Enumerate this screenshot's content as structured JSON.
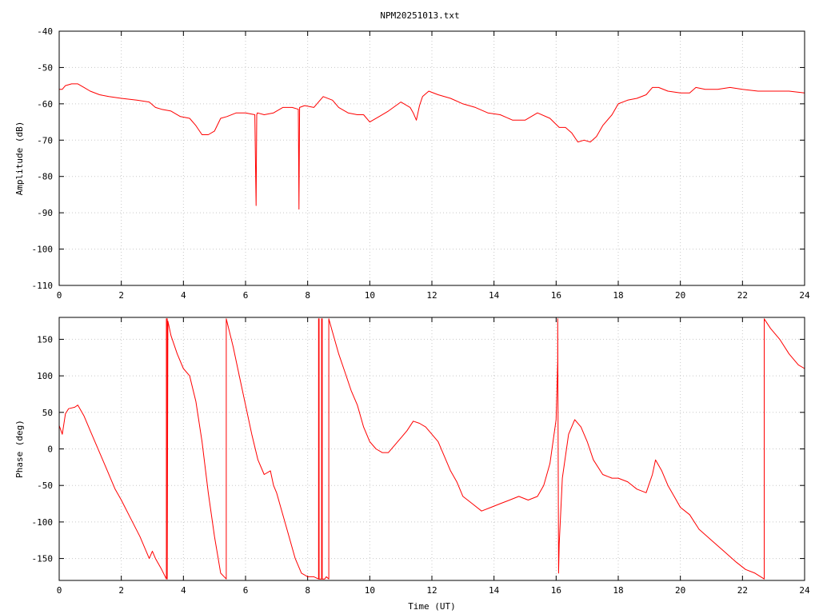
{
  "title": "NPM20251013.txt",
  "colors": {
    "series": "#ff0000",
    "frame": "#000000",
    "grid": "#c8c8c8"
  },
  "chart_data": [
    {
      "type": "line",
      "ylabel": "Amplitude (dB)",
      "xlabel": "",
      "xlim": [
        0,
        24
      ],
      "ylim": [
        -110,
        -40
      ],
      "xticks": [
        0,
        2,
        4,
        6,
        8,
        10,
        12,
        14,
        16,
        18,
        20,
        22,
        24
      ],
      "yticks": [
        -110,
        -100,
        -90,
        -80,
        -70,
        -60,
        -50,
        -40
      ],
      "grid": true,
      "series": [
        {
          "x": [
            0,
            0.1,
            0.2,
            0.4,
            0.6,
            0.8,
            1.0,
            1.3,
            1.6,
            2.0,
            2.5,
            2.9,
            3.1,
            3.3,
            3.6,
            3.9,
            4.2,
            4.4,
            4.6,
            4.8,
            5.0,
            5.2,
            5.4,
            5.7,
            6.0,
            6.3,
            6.34,
            6.36,
            6.38,
            6.6,
            6.9,
            7.2,
            7.5,
            7.7,
            7.72,
            7.74,
            7.9,
            8.2,
            8.5,
            8.8,
            9.0,
            9.3,
            9.6,
            9.8,
            10.0,
            10.3,
            10.6,
            11.0,
            11.3,
            11.4,
            11.5,
            11.6,
            11.7,
            11.9,
            12.2,
            12.6,
            13.0,
            13.4,
            13.8,
            14.2,
            14.6,
            15.0,
            15.4,
            15.8,
            16.1,
            16.3,
            16.5,
            16.7,
            16.9,
            17.1,
            17.3,
            17.5,
            17.8,
            18.0,
            18.3,
            18.6,
            18.9,
            19.1,
            19.3,
            19.6,
            20.0,
            20.3,
            20.5,
            20.8,
            21.2,
            21.6,
            22.0,
            22.5,
            23.0,
            23.5,
            24.0
          ],
          "y": [
            -56,
            -56,
            -55,
            -54.5,
            -54.5,
            -55.5,
            -56.5,
            -57.5,
            -58,
            -58.5,
            -59,
            -59.5,
            -61,
            -61.5,
            -62,
            -63.5,
            -64,
            -66,
            -68.5,
            -68.5,
            -67.5,
            -64,
            -63.5,
            -62.5,
            -62.5,
            -63,
            -88,
            -63,
            -62.5,
            -63,
            -62.5,
            -61,
            -61,
            -61.5,
            -89,
            -61,
            -60.5,
            -61,
            -58,
            -59,
            -61,
            -62.5,
            -63,
            -63,
            -65,
            -63.5,
            -62,
            -59.5,
            -61,
            -62.5,
            -64.5,
            -60.5,
            -58,
            -56.5,
            -57.5,
            -58.5,
            -60,
            -61,
            -62.5,
            -63,
            -64.5,
            -64.5,
            -62.5,
            -64,
            -66.5,
            -66.5,
            -68,
            -70.5,
            -70,
            -70.5,
            -69,
            -66,
            -63,
            -60,
            -59,
            -58.5,
            -57.5,
            -55.5,
            -55.5,
            -56.5,
            -57,
            -57,
            -55.5,
            -56,
            -56,
            -55.5,
            -56,
            -56.5,
            -56.5,
            -56.5,
            -57
          ]
        }
      ]
    },
    {
      "type": "line",
      "ylabel": "Phase (deg)",
      "xlabel": "Time (UT)",
      "xlim": [
        0,
        24
      ],
      "ylim": [
        -180,
        180
      ],
      "xticks": [
        0,
        2,
        4,
        6,
        8,
        10,
        12,
        14,
        16,
        18,
        20,
        22,
        24
      ],
      "yticks": [
        -150,
        -100,
        -50,
        0,
        50,
        100,
        150
      ],
      "grid": true,
      "series": [
        {
          "x": [
            0,
            0.1,
            0.2,
            0.3,
            0.5,
            0.6,
            0.8,
            1.0,
            1.2,
            1.5,
            1.8,
            2.0,
            2.3,
            2.6,
            2.9,
            3.0,
            3.1,
            3.3,
            3.45,
            3.45,
            3.48,
            3.48,
            3.5,
            3.6,
            3.8,
            4.0,
            4.2,
            4.4,
            4.6,
            4.8,
            5.0,
            5.2,
            5.38,
            5.38,
            5.6,
            5.8,
            6.0,
            6.2,
            6.4,
            6.6,
            6.8,
            6.9,
            7.0,
            7.2,
            7.4,
            7.6,
            7.8,
            8.0,
            8.2,
            8.35,
            8.35,
            8.37,
            8.37,
            8.45,
            8.45,
            8.47,
            8.47,
            8.55,
            8.6,
            8.68,
            8.68,
            8.8,
            9.0,
            9.2,
            9.4,
            9.6,
            9.8,
            10.0,
            10.2,
            10.4,
            10.6,
            10.8,
            11.0,
            11.2,
            11.4,
            11.6,
            11.8,
            12.0,
            12.2,
            12.4,
            12.6,
            12.8,
            13.0,
            13.3,
            13.6,
            13.9,
            14.2,
            14.5,
            14.8,
            15.1,
            15.4,
            15.6,
            15.8,
            16.0,
            16.05,
            16.05,
            16.08,
            16.1,
            16.2,
            16.4,
            16.6,
            16.8,
            17.0,
            17.2,
            17.5,
            17.8,
            18.0,
            18.3,
            18.6,
            18.9,
            19.1,
            19.2,
            19.4,
            19.6,
            19.8,
            20.0,
            20.3,
            20.6,
            21.0,
            21.4,
            21.8,
            22.1,
            22.4,
            22.7,
            22.7,
            22.9,
            23.2,
            23.5,
            23.8,
            24.0
          ],
          "y": [
            32,
            20,
            48,
            55,
            57,
            60,
            45,
            25,
            5,
            -25,
            -55,
            -70,
            -95,
            -120,
            -150,
            -140,
            -150,
            -165,
            -178,
            178,
            178,
            -178,
            175,
            155,
            130,
            110,
            100,
            65,
            10,
            -60,
            -120,
            -170,
            -178,
            178,
            140,
            100,
            60,
            20,
            -15,
            -35,
            -30,
            -50,
            -60,
            -90,
            -120,
            -150,
            -170,
            -175,
            -175,
            -178,
            178,
            178,
            -178,
            -178,
            178,
            178,
            -178,
            -178,
            -175,
            -178,
            178,
            160,
            130,
            105,
            80,
            60,
            30,
            10,
            0,
            -5,
            -5,
            5,
            15,
            25,
            38,
            35,
            30,
            20,
            10,
            -10,
            -30,
            -45,
            -65,
            -75,
            -85,
            -80,
            -75,
            -70,
            -65,
            -70,
            -65,
            -50,
            -20,
            40,
            120,
            178,
            -170,
            -130,
            -40,
            20,
            40,
            30,
            10,
            -15,
            -35,
            -40,
            -40,
            -45,
            -55,
            -60,
            -35,
            -15,
            -30,
            -50,
            -65,
            -80,
            -90,
            -110,
            -125,
            -140,
            -155,
            -165,
            -170,
            -178,
            178,
            165,
            150,
            130,
            115,
            110
          ]
        }
      ]
    }
  ]
}
